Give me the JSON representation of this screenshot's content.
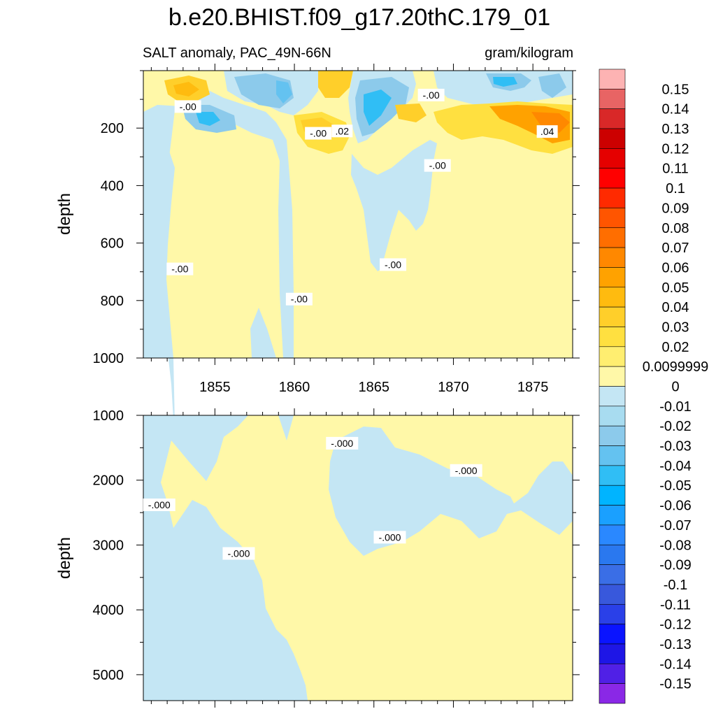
{
  "title": "b.e20.BHIST.f09_g17.20thC.179_01",
  "subtitle_left": "SALT anomaly, PAC_49N-66N",
  "subtitle_right": "gram/kilogram",
  "colors": {
    "positive_small": "#fff8a8",
    "negative_small": "#c4e6f4"
  },
  "chart_data": [
    {
      "type": "heatmap",
      "panel": "upper",
      "ylabel": "depth",
      "xlim": [
        1850.5,
        1877.5
      ],
      "ylim": [
        1000,
        0
      ],
      "x_ticks": [
        1855,
        1860,
        1865,
        1870,
        1875
      ],
      "x_tick_labels": [
        "1855",
        "1860",
        "1865",
        "1870",
        "1875"
      ],
      "y_ticks": [
        200,
        400,
        600,
        800,
        1000
      ],
      "y_tick_labels": [
        "200",
        "400",
        "600",
        "800",
        "1000"
      ],
      "contour_labels": [
        {
          "text": "-.00",
          "x": 1853.3,
          "y": 125
        },
        {
          "text": "-.00",
          "x": 1861.5,
          "y": 218
        },
        {
          "text": ".02",
          "x": 1863.0,
          "y": 210
        },
        {
          "text": "-.00",
          "x": 1868.6,
          "y": 85
        },
        {
          "text": ".04",
          "x": 1875.9,
          "y": 212
        },
        {
          "text": "-.00",
          "x": 1869.0,
          "y": 330
        },
        {
          "text": "-.00",
          "x": 1852.8,
          "y": 690
        },
        {
          "text": "-.00",
          "x": 1860.3,
          "y": 795
        },
        {
          "text": "-.00",
          "x": 1866.2,
          "y": 675
        }
      ]
    },
    {
      "type": "heatmap",
      "panel": "lower",
      "ylabel": "depth",
      "xlim": [
        1850.5,
        1877.5
      ],
      "ylim": [
        5400,
        1000
      ],
      "y_ticks": [
        1000,
        2000,
        3000,
        4000,
        5000
      ],
      "y_tick_labels": [
        "1000",
        "2000",
        "3000",
        "4000",
        "5000"
      ],
      "contour_labels": [
        {
          "text": "-.000",
          "x": 1851.5,
          "y": 2380
        },
        {
          "text": "-.000",
          "x": 1856.5,
          "y": 3130
        },
        {
          "text": "-.000",
          "x": 1863.0,
          "y": 1430
        },
        {
          "text": "-.000",
          "x": 1870.8,
          "y": 1850
        },
        {
          "text": "-.000",
          "x": 1866.0,
          "y": 2880
        }
      ]
    }
  ],
  "colorbar": {
    "labels": [
      "0.15",
      "0.14",
      "0.13",
      "0.12",
      "0.11",
      "0.1",
      "0.09",
      "0.08",
      "0.07",
      "0.06",
      "0.05",
      "0.04",
      "0.03",
      "0.02",
      "0.0099999",
      "0",
      "-0.01",
      "-0.02",
      "-0.03",
      "-0.04",
      "-0.05",
      "-0.06",
      "-0.07",
      "-0.08",
      "-0.09",
      "-0.1",
      "-0.11",
      "-0.12",
      "-0.13",
      "-0.14",
      "-0.15"
    ],
    "colors": [
      "#fdb3b3",
      "#e86464",
      "#d92828",
      "#cc0000",
      "#e50000",
      "#ff0000",
      "#ff2a00",
      "#ff5500",
      "#ff6e00",
      "#ff8800",
      "#ffa200",
      "#ffbb0f",
      "#ffcf2a",
      "#ffe040",
      "#ffee70",
      "#fff8a8",
      "#c4e6f4",
      "#a8dcf0",
      "#8ccaeb",
      "#64c2f0",
      "#30bef5",
      "#00b4ff",
      "#1aa0ff",
      "#2a88ff",
      "#2a78ef",
      "#3a6ee6",
      "#3858dc",
      "#2a40e8",
      "#0a14ff",
      "#1e16e6",
      "#5020e6",
      "#8a28e6"
    ]
  }
}
